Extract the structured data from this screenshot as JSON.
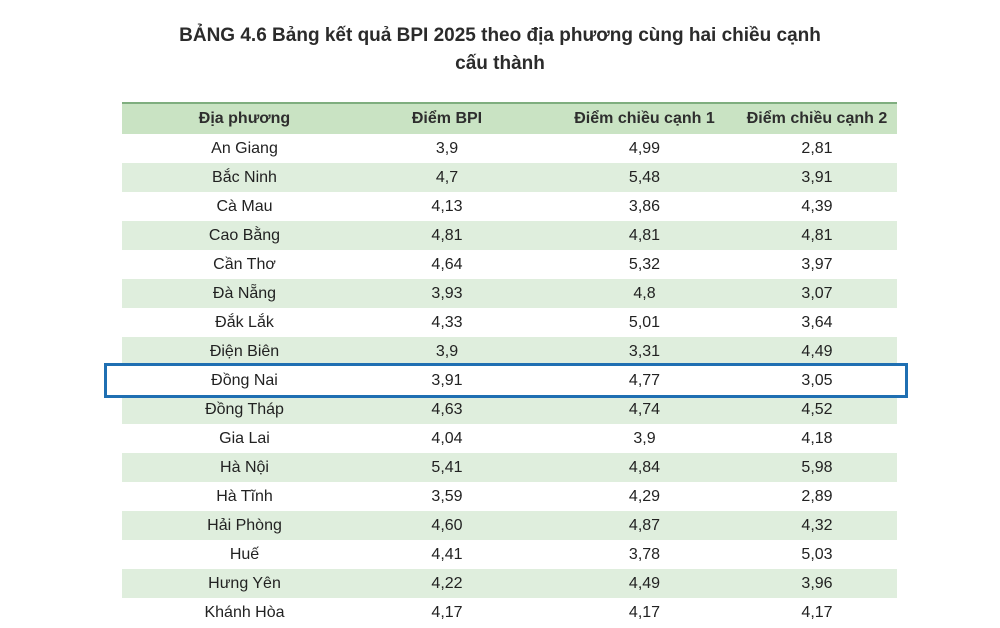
{
  "title": {
    "line1": "BẢNG 4.6 Bảng kết quả BPI 2025 theo địa phương cùng hai chiều cạnh",
    "line2": "cấu thành"
  },
  "table": {
    "headers": [
      "Địa phương",
      "Điểm BPI",
      "Điểm chiều cạnh 1",
      "Điểm chiều cạnh 2"
    ],
    "rows": [
      [
        "An Giang",
        "3,9",
        "4,99",
        "2,81"
      ],
      [
        "Bắc Ninh",
        "4,7",
        "5,48",
        "3,91"
      ],
      [
        "Cà Mau",
        "4,13",
        "3,86",
        "4,39"
      ],
      [
        "Cao Bằng",
        "4,81",
        "4,81",
        "4,81"
      ],
      [
        "Cần Thơ",
        "4,64",
        "5,32",
        "3,97"
      ],
      [
        "Đà Nẵng",
        "3,93",
        "4,8",
        "3,07"
      ],
      [
        "Đắk Lắk",
        "4,33",
        "5,01",
        "3,64"
      ],
      [
        "Điện Biên",
        "3,9",
        "3,31",
        "4,49"
      ],
      [
        "Đồng Nai",
        "3,91",
        "4,77",
        "3,05"
      ],
      [
        "Đồng Tháp",
        "4,63",
        "4,74",
        "4,52"
      ],
      [
        "Gia Lai",
        "4,04",
        "3,9",
        "4,18"
      ],
      [
        "Hà Nội",
        "5,41",
        "4,84",
        "5,98"
      ],
      [
        "Hà Tĩnh",
        "3,59",
        "4,29",
        "2,89"
      ],
      [
        "Hải Phòng",
        "4,60",
        "4,87",
        "4,32"
      ],
      [
        "Huế",
        "4,41",
        "3,78",
        "5,03"
      ],
      [
        "Hưng Yên",
        "4,22",
        "4,49",
        "3,96"
      ],
      [
        "Khánh Hòa",
        "4,17",
        "4,17",
        "4,17"
      ]
    ],
    "highlighted_row": "Đồng Nai"
  },
  "colors": {
    "header_bg": "#c9e3c3",
    "alt_row_bg": "#dfeedd",
    "highlight_border": "#1f6fb2"
  }
}
